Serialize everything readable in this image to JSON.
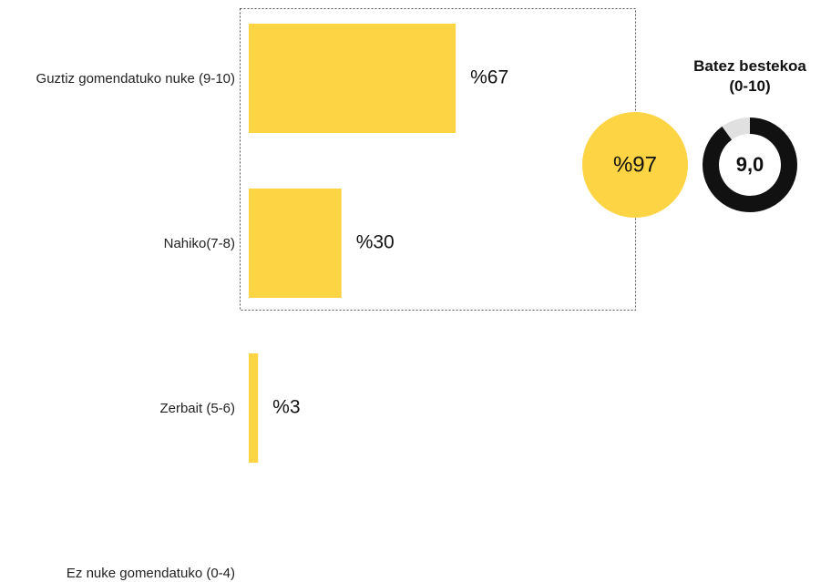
{
  "chart_data": {
    "type": "hbar",
    "categories": [
      "Guztiz gomendatuko nuke (9-10)",
      "Nahiko(7-8)",
      "Zerbait (5-6)",
      "Ez nuke gomendatuko (0-4)"
    ],
    "values": [
      67,
      30,
      3,
      null
    ],
    "value_labels": [
      "%67",
      "%30",
      "%3",
      null
    ],
    "color": "#fdd444",
    "xlim": [
      0,
      100
    ],
    "summary": {
      "value": 97,
      "label": "%97",
      "color": "#fdd444"
    },
    "average": {
      "title": "Batez bestekoa (0-10)",
      "value": 9.0,
      "label": "9,0",
      "max": 10,
      "color": "#111111",
      "track_color": "#e0e0e0"
    }
  }
}
